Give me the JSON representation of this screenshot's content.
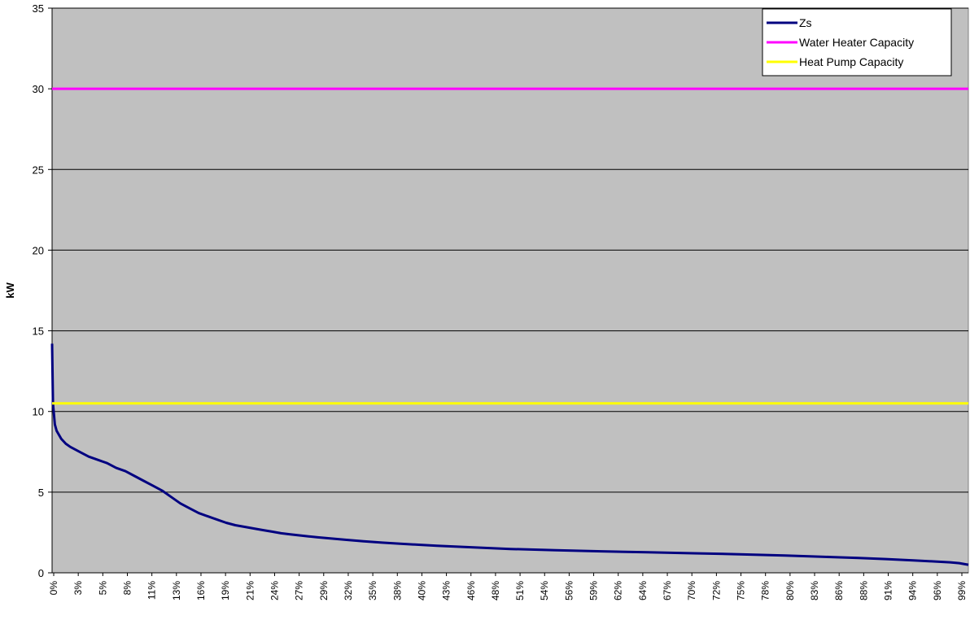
{
  "chart_data": {
    "type": "line",
    "title": "",
    "xlabel": "",
    "ylabel": "kW",
    "ylim": [
      0,
      35
    ],
    "y_ticks": [
      0,
      5,
      10,
      15,
      20,
      25,
      30,
      35
    ],
    "x_range": [
      0,
      100
    ],
    "x_tick_labels": [
      "0%",
      "3%",
      "5%",
      "8%",
      "11%",
      "13%",
      "16%",
      "19%",
      "21%",
      "24%",
      "27%",
      "29%",
      "32%",
      "35%",
      "38%",
      "40%",
      "43%",
      "46%",
      "48%",
      "51%",
      "54%",
      "56%",
      "59%",
      "62%",
      "64%",
      "67%",
      "70%",
      "72%",
      "75%",
      "78%",
      "80%",
      "83%",
      "86%",
      "88%",
      "91%",
      "94%",
      "96%",
      "99%"
    ],
    "grid": "horizontal",
    "plot_background": "#c0c0c0",
    "legend_position": "top-right",
    "series": [
      {
        "name": "Zs",
        "color": "#000080",
        "x": [
          0,
          0.1,
          0.3,
          0.5,
          1,
          1.5,
          2,
          3,
          4,
          5,
          6,
          7,
          8,
          9,
          10,
          11,
          12,
          13,
          14,
          15,
          16,
          17,
          18,
          19,
          20,
          21,
          22,
          23,
          24,
          25,
          26,
          27,
          28,
          29,
          30,
          32,
          34,
          36,
          38,
          40,
          42,
          45,
          48,
          50,
          55,
          60,
          65,
          70,
          75,
          80,
          85,
          88,
          91,
          94,
          96,
          98,
          99,
          100
        ],
        "values": [
          14.2,
          10.5,
          9.2,
          8.8,
          8.3,
          8.0,
          7.8,
          7.5,
          7.2,
          7.0,
          6.8,
          6.5,
          6.3,
          6.0,
          5.7,
          5.4,
          5.1,
          4.7,
          4.3,
          4.0,
          3.7,
          3.5,
          3.3,
          3.1,
          2.95,
          2.85,
          2.75,
          2.65,
          2.55,
          2.45,
          2.38,
          2.32,
          2.26,
          2.2,
          2.15,
          2.05,
          1.95,
          1.87,
          1.8,
          1.74,
          1.68,
          1.6,
          1.53,
          1.48,
          1.4,
          1.33,
          1.27,
          1.21,
          1.15,
          1.07,
          0.98,
          0.92,
          0.85,
          0.77,
          0.71,
          0.65,
          0.6,
          0.5
        ]
      },
      {
        "name": "Water Heater Capacity",
        "color": "#ff00ff",
        "x": [
          0,
          100
        ],
        "values": [
          30,
          30
        ]
      },
      {
        "name": "Heat Pump Capacity",
        "color": "#ffff00",
        "x": [
          0,
          100
        ],
        "values": [
          10.5,
          10.5
        ]
      }
    ]
  }
}
